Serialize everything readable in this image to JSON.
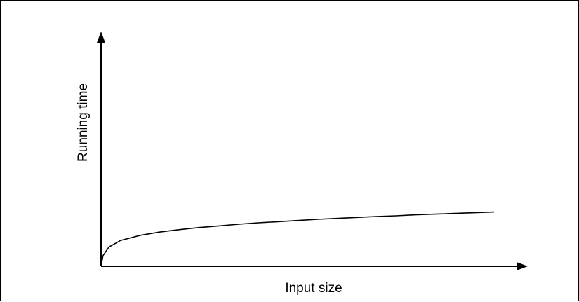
{
  "chart_data": {
    "type": "line",
    "title": "",
    "xlabel": "Input size",
    "ylabel": "Running time",
    "grid": false,
    "legend": "none",
    "x": [
      0,
      0.005,
      0.02,
      0.05,
      0.1,
      0.15,
      0.2,
      0.25,
      0.3,
      0.35,
      0.4,
      0.45,
      0.5,
      0.55,
      0.6,
      0.65,
      0.7,
      0.75,
      0.8,
      0.85,
      0.9,
      0.95,
      1.0
    ],
    "xlim": [
      0,
      1.07
    ],
    "ylim": [
      0,
      1.0
    ],
    "series": [
      {
        "color": "#000000",
        "values": [
          0,
          0.045,
          0.082,
          0.11,
          0.132,
          0.146,
          0.156,
          0.165,
          0.172,
          0.179,
          0.185,
          0.19,
          0.195,
          0.2,
          0.204,
          0.208,
          0.212,
          0.215,
          0.219,
          0.222,
          0.225,
          0.228,
          0.231
        ]
      }
    ]
  }
}
